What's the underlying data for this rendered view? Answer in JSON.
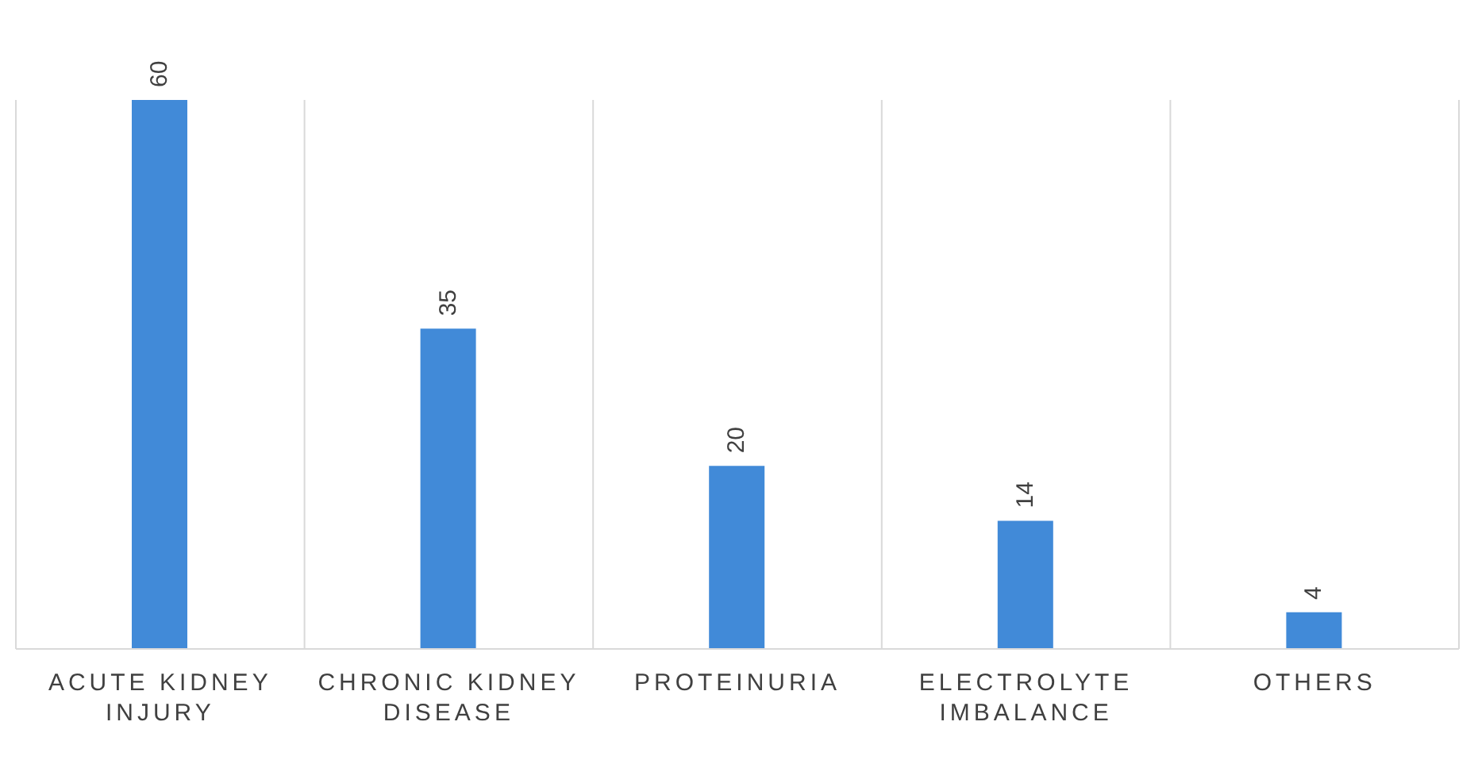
{
  "chart_data": {
    "type": "bar",
    "categories": [
      "ACUTE KIDNEY INJURY",
      "CHRONIC KIDNEY DISEASE",
      "PROTEINURIA",
      "ELECTROLYTE IMBALANCE",
      "OTHERS"
    ],
    "values": [
      60,
      35,
      20,
      14,
      4
    ],
    "color": "#418ad8",
    "data_labels": true,
    "tick_labels": "x",
    "grid": "x"
  }
}
